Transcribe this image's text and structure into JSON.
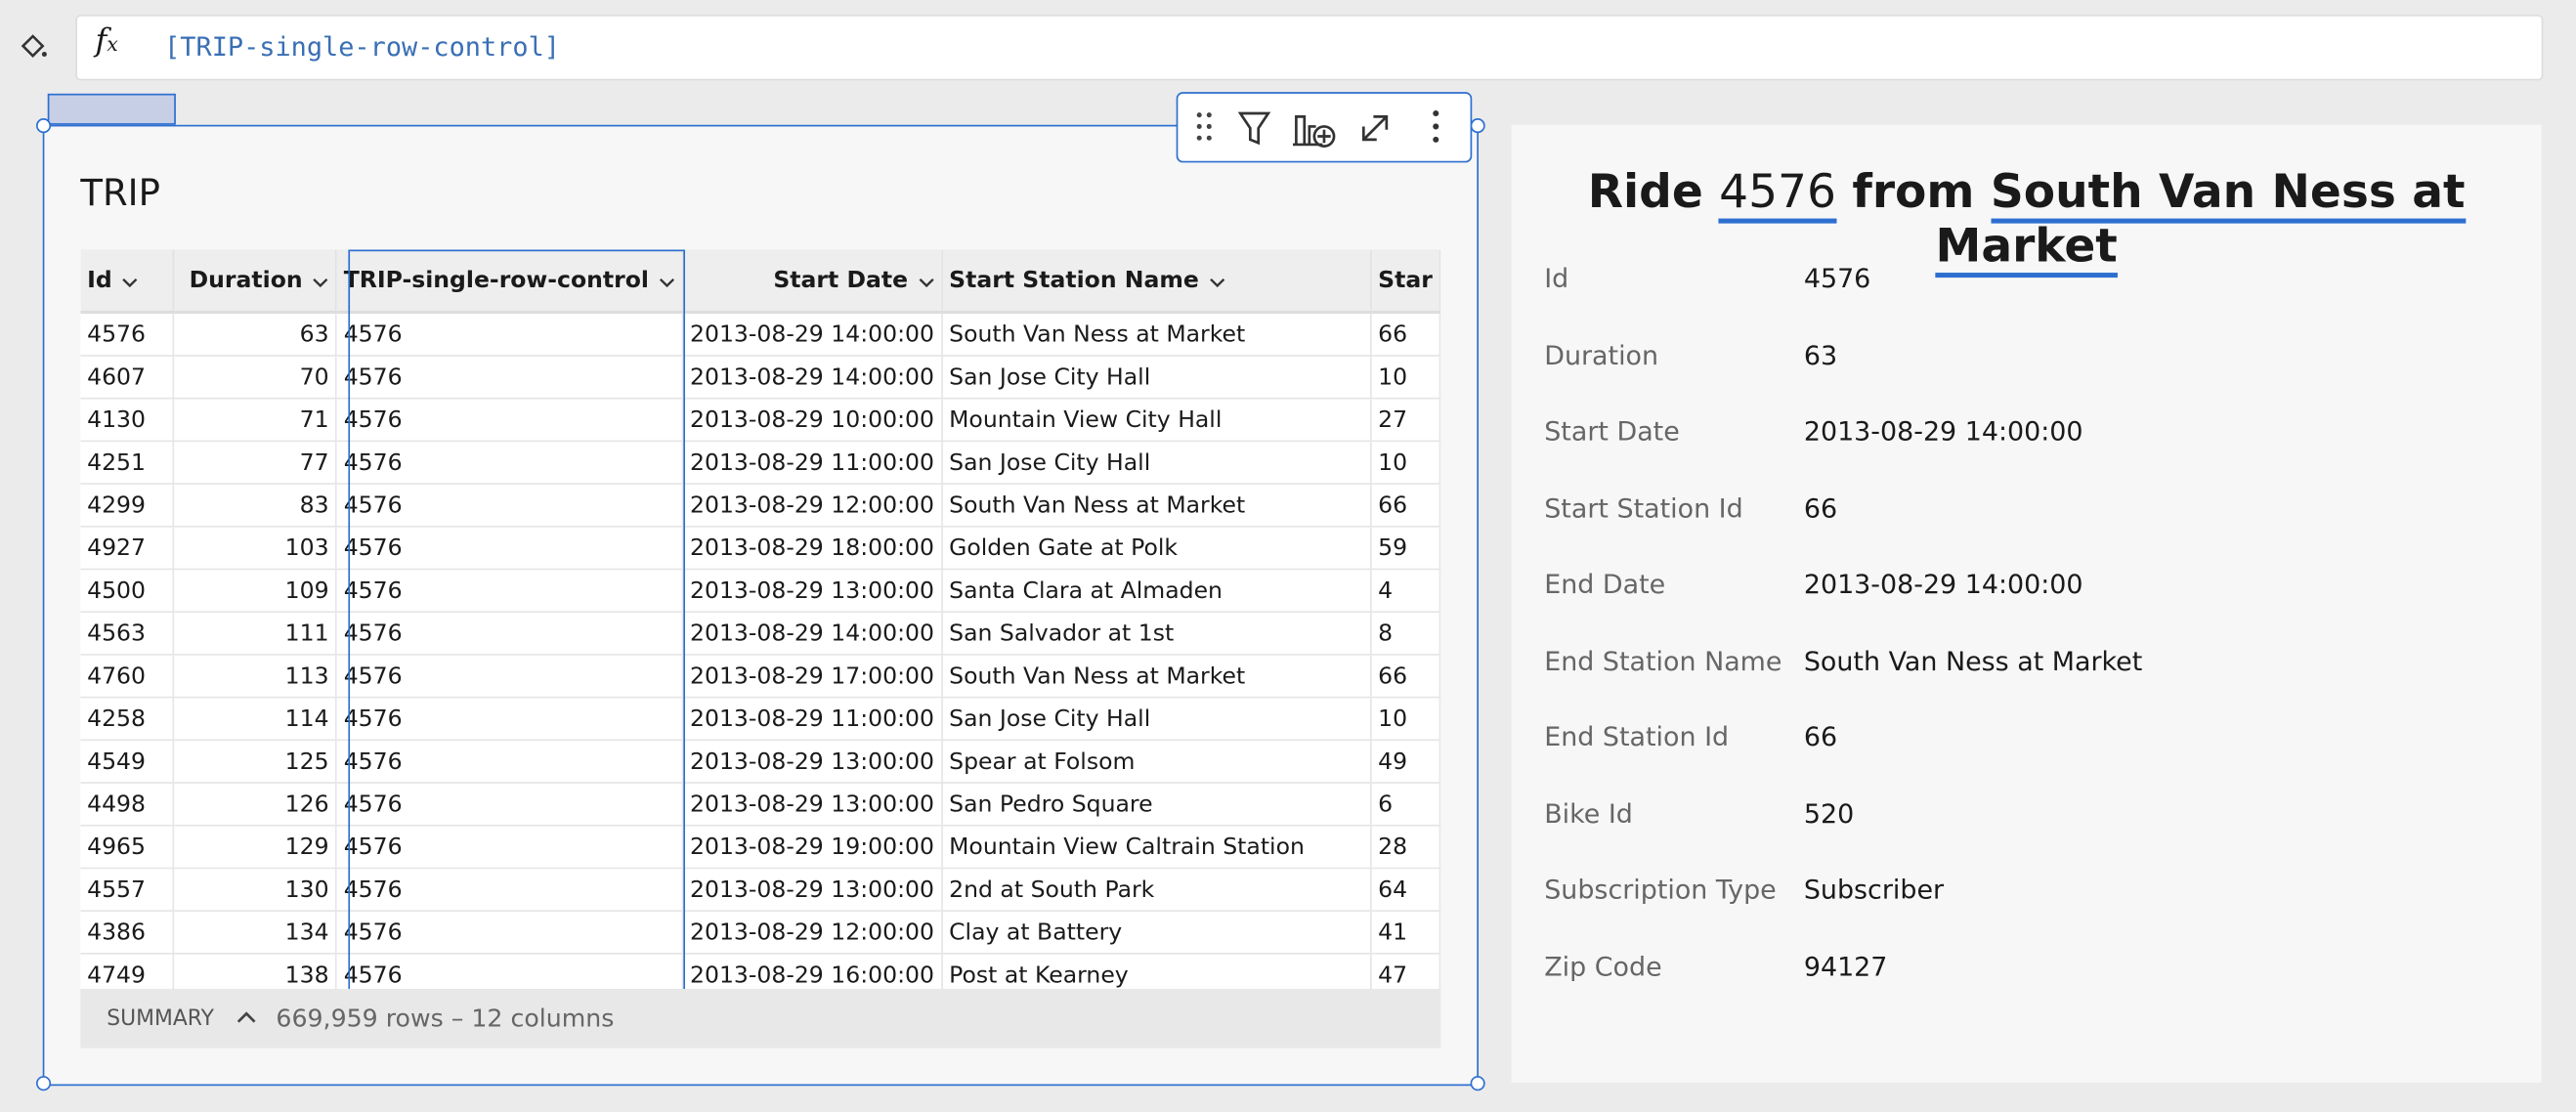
{
  "formula_bar": {
    "expression": "[TRIP-single-row-control]"
  },
  "table": {
    "title": "TRIP",
    "columns": [
      "Id",
      "Duration",
      "TRIP-single-row-control",
      "Start Date",
      "Start Station Name",
      "Star"
    ],
    "rows": [
      [
        4576,
        63,
        4576,
        "2013-08-29 14:00:00",
        "South Van Ness at Market",
        66
      ],
      [
        4607,
        70,
        4576,
        "2013-08-29 14:00:00",
        "San Jose City Hall",
        10
      ],
      [
        4130,
        71,
        4576,
        "2013-08-29 10:00:00",
        "Mountain View City Hall",
        27
      ],
      [
        4251,
        77,
        4576,
        "2013-08-29 11:00:00",
        "San Jose City Hall",
        10
      ],
      [
        4299,
        83,
        4576,
        "2013-08-29 12:00:00",
        "South Van Ness at Market",
        66
      ],
      [
        4927,
        103,
        4576,
        "2013-08-29 18:00:00",
        "Golden Gate at Polk",
        59
      ],
      [
        4500,
        109,
        4576,
        "2013-08-29 13:00:00",
        "Santa Clara at Almaden",
        4
      ],
      [
        4563,
        111,
        4576,
        "2013-08-29 14:00:00",
        "San Salvador at 1st",
        8
      ],
      [
        4760,
        113,
        4576,
        "2013-08-29 17:00:00",
        "South Van Ness at Market",
        66
      ],
      [
        4258,
        114,
        4576,
        "2013-08-29 11:00:00",
        "San Jose City Hall",
        10
      ],
      [
        4549,
        125,
        4576,
        "2013-08-29 13:00:00",
        "Spear at Folsom",
        49
      ],
      [
        4498,
        126,
        4576,
        "2013-08-29 13:00:00",
        "San Pedro Square",
        6
      ],
      [
        4965,
        129,
        4576,
        "2013-08-29 19:00:00",
        "Mountain View Caltrain Station",
        28
      ],
      [
        4557,
        130,
        4576,
        "2013-08-29 13:00:00",
        "2nd at South Park",
        64
      ],
      [
        4386,
        134,
        4576,
        "2013-08-29 12:00:00",
        "Clay at Battery",
        41
      ],
      [
        4749,
        138,
        4576,
        "2013-08-29 16:00:00",
        "Post at Kearney",
        47
      ]
    ],
    "summary_label": "SUMMARY",
    "summary": "669,959 rows – 12 columns"
  },
  "detail": {
    "title_parts": [
      "Ride",
      "4576",
      "from",
      "South Van Ness at Market"
    ],
    "fields": [
      {
        "label": "Id",
        "value": "4576"
      },
      {
        "label": "Duration",
        "value": "63"
      },
      {
        "label": "Start Date",
        "value": "2013-08-29 14:00:00"
      },
      {
        "label": "Start Station Id",
        "value": "66"
      },
      {
        "label": "End Date",
        "value": "2013-08-29 14:00:00"
      },
      {
        "label": "End Station Name",
        "value": "South Van Ness at Market"
      },
      {
        "label": "End Station Id",
        "value": "66"
      },
      {
        "label": "Bike Id",
        "value": "520"
      },
      {
        "label": "Subscription Type",
        "value": "Subscriber"
      },
      {
        "label": "Zip Code",
        "value": "94127"
      }
    ]
  }
}
